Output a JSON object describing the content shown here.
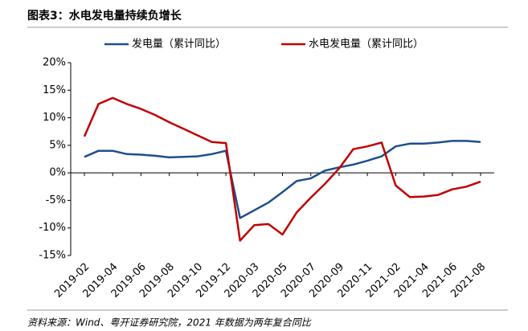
{
  "chart_data": {
    "type": "line",
    "title": "图表3：水电发电量持续负增长",
    "source": "资料来源：Wind、粤开证券研究院，2021 年数据为两年复合同比",
    "categories": [
      "2019-02",
      null,
      "2019-04",
      null,
      "2019-06",
      null,
      "2019-08",
      null,
      "2019-10",
      null,
      "2019-12",
      null,
      "2020-03",
      null,
      "2020-05",
      null,
      "2020-07",
      null,
      "2020-09",
      null,
      "2020-11",
      null,
      "2021-02",
      null,
      "2021-04",
      null,
      "2021-06",
      null,
      "2021-08"
    ],
    "series": [
      {
        "name": "发电量（累计同比）",
        "color": "#1f4e8c",
        "values": [
          2.9,
          4.0,
          4.0,
          3.4,
          3.3,
          3.1,
          2.8,
          2.9,
          3.0,
          3.4,
          4.0,
          -8.2,
          -6.8,
          -5.4,
          -3.5,
          -1.5,
          -1.0,
          0.4,
          1.0,
          1.5,
          2.2,
          3.0,
          4.8,
          5.3,
          5.3,
          5.5,
          5.8,
          5.8,
          5.6
        ]
      },
      {
        "name": "水电发电量（累计同比）",
        "color": "#c00000",
        "values": [
          6.6,
          12.5,
          13.6,
          12.5,
          11.6,
          10.5,
          9.2,
          8.0,
          6.8,
          5.6,
          5.4,
          -12.3,
          -9.5,
          -9.3,
          -11.2,
          -7.2,
          -4.5,
          -2.0,
          0.8,
          4.3,
          4.8,
          5.5,
          -2.3,
          -4.4,
          -4.3,
          -4.0,
          -3.0,
          -2.5,
          -1.6
        ]
      }
    ],
    "ylim": [
      -15,
      20
    ],
    "yticks": [
      {
        "value": -15,
        "label": "-15%"
      },
      {
        "value": -10,
        "label": "-10%"
      },
      {
        "value": -5,
        "label": "-5%"
      },
      {
        "value": 0,
        "label": "0%"
      },
      {
        "value": 5,
        "label": "5%"
      },
      {
        "value": 10,
        "label": "10%"
      },
      {
        "value": 15,
        "label": "15%"
      },
      {
        "value": 20,
        "label": "20%"
      }
    ],
    "legend": "top"
  }
}
